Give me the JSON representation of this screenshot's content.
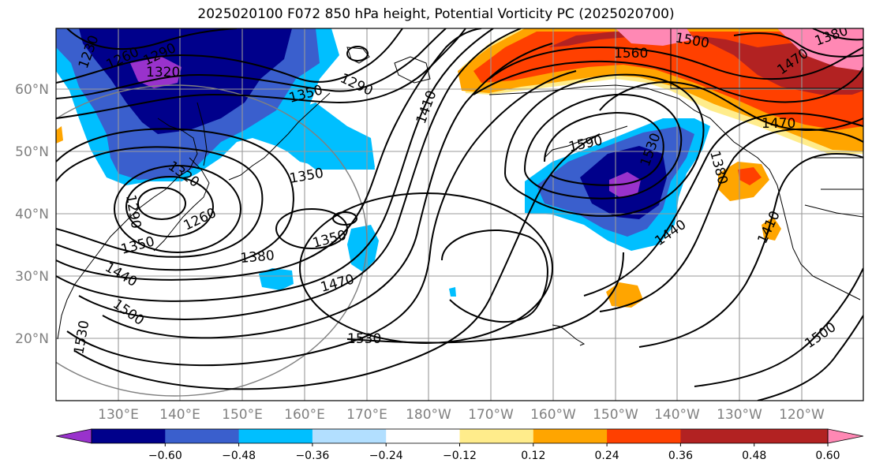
{
  "title": "2025020100 F072 850 hPa height, Potential Vorticity PC (2025020700)",
  "map": {
    "lat_labels": [
      "60°N",
      "50°N",
      "40°N",
      "30°N",
      "20°N"
    ],
    "lon_labels": [
      "130°E",
      "140°E",
      "150°E",
      "160°E",
      "170°E",
      "180°W",
      "170°W",
      "160°W",
      "150°W",
      "140°W",
      "130°W",
      "120°W"
    ],
    "contour_labels": [
      "1230",
      "1260",
      "1290",
      "1320",
      "1350",
      "1290",
      "1350",
      "1410",
      "1500",
      "1560",
      "1380",
      "1470",
      "1470",
      "1590",
      "1530",
      "1380",
      "1320",
      "1260",
      "1290",
      "1350",
      "1350",
      "1380",
      "1410",
      "1440",
      "1440",
      "1470",
      "1500",
      "1530",
      "1530",
      "1500",
      "1440"
    ],
    "colors": {
      "pv_m060_below": "#9932CC",
      "pv_m060_m048": "#00008B",
      "pv_m048_m036": "#3A5FCD",
      "pv_m036_m024": "#00BFFF",
      "pv_m024_m012": "#B2DFFF",
      "pv_012_024": "#FFEC8B",
      "pv_024_036": "#FFA500",
      "pv_036_048": "#FF4000",
      "pv_048_060": "#B22222",
      "pv_060_above": "#FF88B4"
    }
  },
  "colorbar": {
    "ticks": [
      "−0.60",
      "−0.48",
      "−0.36",
      "−0.24",
      "−0.12",
      "0.12",
      "0.24",
      "0.36",
      "0.48",
      "0.60"
    ],
    "colors": [
      "#9932CC",
      "#00008B",
      "#3A5FCD",
      "#00BFFF",
      "#B2DFFF",
      "#FFFFFF",
      "#FFEC8B",
      "#FFA500",
      "#FF4000",
      "#B22222",
      "#FF88B4"
    ]
  }
}
